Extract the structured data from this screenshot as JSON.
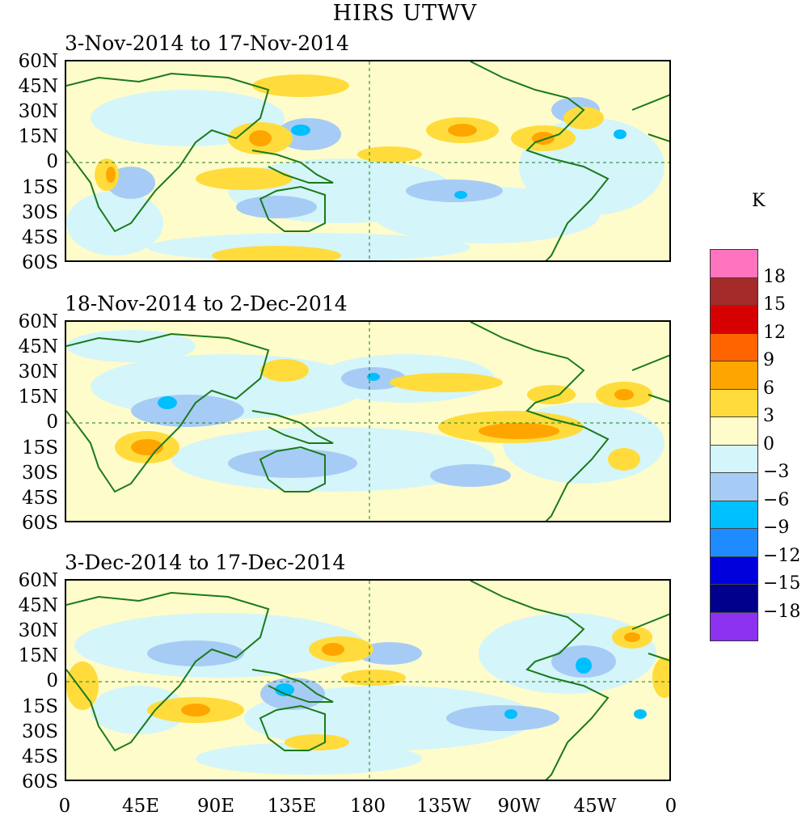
{
  "title": "HIRS UTWV",
  "unit": "K",
  "panels": [
    {
      "label": "3-Nov-2014 to 17-Nov-2014"
    },
    {
      "label": "18-Nov-2014 to 2-Dec-2014"
    },
    {
      "label": "3-Dec-2014 to 17-Dec-2014"
    }
  ],
  "lat_labels": [
    "60N",
    "45N",
    "30N",
    "15N",
    "0",
    "15S",
    "30S",
    "45S",
    "60S"
  ],
  "lon_labels": [
    "0",
    "45E",
    "90E",
    "135E",
    "180",
    "135W",
    "90W",
    "45W",
    "0"
  ],
  "colorbar": {
    "colors": [
      "#ff73bf",
      "#a52a2a",
      "#d70000",
      "#ff6400",
      "#ffa500",
      "#ffdc3c",
      "#fffccb",
      "#d4f5fa",
      "#a6ccf5",
      "#00bfff",
      "#1e8cff",
      "#0000dc",
      "#00008c",
      "#8c32f0"
    ],
    "ticks": [
      "18",
      "15",
      "12",
      "9",
      "6",
      "3",
      "0",
      "−3",
      "−6",
      "−9",
      "−12",
      "−15",
      "−18"
    ]
  },
  "map_colors": {
    "base": "#fffccb",
    "light_blue": "#d4f5fa",
    "mid_blue": "#a6ccf5",
    "cyan": "#00bfff",
    "yellow": "#ffdc3c",
    "orange": "#ffa500",
    "coast": "#1a7a1a"
  }
}
